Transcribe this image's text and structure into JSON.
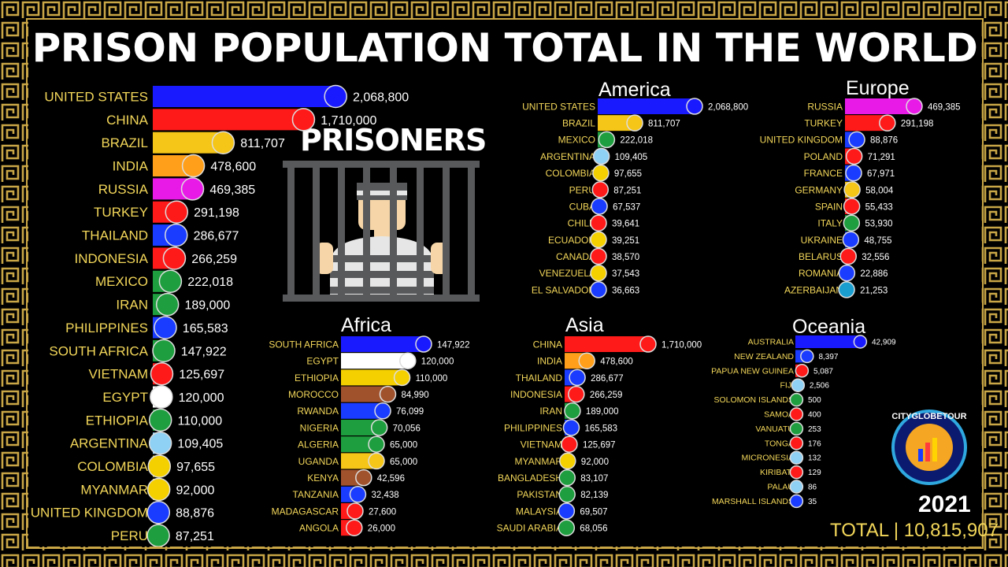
{
  "title": "PRISON POPULATION TOTAL IN THE WORLD",
  "graphic_label": "PRISONERS",
  "logo_text": "CITYGLOBETOUR",
  "year": "2021",
  "total_label": "TOTAL | 10,815,907",
  "colors": {
    "label": "#f3d75a",
    "value": "#ffffff",
    "gold": "#c9a646",
    "background": "#000000"
  },
  "chart_data": [
    {
      "type": "bar",
      "name": "World",
      "xlim": [
        0,
        2068800
      ],
      "categories": [
        "UNITED STATES",
        "CHINA",
        "BRAZIL",
        "INDIA",
        "RUSSIA",
        "TURKEY",
        "THAILAND",
        "INDONESIA",
        "MEXICO",
        "IRAN",
        "PHILIPPINES",
        "SOUTH AFRICA",
        "VIETNAM",
        "EGYPT",
        "ETHIOPIA",
        "ARGENTINA",
        "COLOMBIA",
        "MYANMAR",
        "UNITED KINGDOM",
        "PERU"
      ],
      "values": [
        2068800,
        1710000,
        811707,
        478600,
        469385,
        291198,
        286677,
        266259,
        222018,
        189000,
        165583,
        147922,
        125697,
        120000,
        110000,
        109405,
        97655,
        92000,
        88876,
        87251
      ],
      "value_labels": [
        "2,068,800",
        "1,710,000",
        "811,707",
        "478,600",
        "469,385",
        "291,198",
        "286,677",
        "266,259",
        "222,018",
        "189,000",
        "165,583",
        "147,922",
        "125,697",
        "120,000",
        "110,000",
        "109,405",
        "97,655",
        "92,000",
        "88,876",
        "87,251"
      ],
      "colors": [
        "#1a1aff",
        "#ff1a1a",
        "#f5c518",
        "#ff9f1a",
        "#e81ae8",
        "#ff1a1a",
        "#1a3cff",
        "#ff1a1a",
        "#1f9e3f",
        "#1f9e3f",
        "#1a3cff",
        "#1f9e3f",
        "#ff1a1a",
        "#ffffff",
        "#1f9e3f",
        "#8fd0f5",
        "#f5d000",
        "#f5d000",
        "#1a3cff",
        "#1f9e3f"
      ]
    },
    {
      "type": "bar",
      "title": "America",
      "xlim": [
        0,
        2068800
      ],
      "categories": [
        "UNITED STATES",
        "BRAZIL",
        "MEXICO",
        "ARGENTINA",
        "COLOMBIA",
        "PERU",
        "CUBA",
        "CHILE",
        "ECUADOR",
        "CANADA",
        "VENEZUELA",
        "EL SALVADOR"
      ],
      "values": [
        2068800,
        811707,
        222018,
        109405,
        97655,
        87251,
        67537,
        39641,
        39251,
        38570,
        37543,
        36663
      ],
      "value_labels": [
        "2,068,800",
        "811,707",
        "222,018",
        "109,405",
        "97,655",
        "87,251",
        "67,537",
        "39,641",
        "39,251",
        "38,570",
        "37,543",
        "36,663"
      ],
      "colors": [
        "#1a1aff",
        "#f5c518",
        "#1f9e3f",
        "#8fd0f5",
        "#f5d000",
        "#ff1a1a",
        "#1a3cff",
        "#ff1a1a",
        "#f5d000",
        "#ff1a1a",
        "#f5d000",
        "#1a3cff"
      ]
    },
    {
      "type": "bar",
      "title": "Europe",
      "xlim": [
        0,
        469385
      ],
      "categories": [
        "RUSSIA",
        "TURKEY",
        "UNITED KINGDOM",
        "POLAND",
        "FRANCE",
        "GERMANY",
        "SPAIN",
        "ITALY",
        "UKRAINE",
        "BELARUS",
        "ROMANIA",
        "AZERBAIJAN"
      ],
      "values": [
        469385,
        291198,
        88876,
        71291,
        67971,
        58004,
        55433,
        53930,
        48755,
        32556,
        22886,
        21253
      ],
      "value_labels": [
        "469,385",
        "291,198",
        "88,876",
        "71,291",
        "67,971",
        "58,004",
        "55,433",
        "53,930",
        "48,755",
        "32,556",
        "22,886",
        "21,253"
      ],
      "colors": [
        "#e81ae8",
        "#ff1a1a",
        "#1a3cff",
        "#ff1a1a",
        "#1a3cff",
        "#f5c518",
        "#ff1a1a",
        "#1f9e3f",
        "#1a3cff",
        "#ff1a1a",
        "#1a3cff",
        "#1a9ed0"
      ]
    },
    {
      "type": "bar",
      "title": "Africa",
      "xlim": [
        0,
        147922
      ],
      "categories": [
        "SOUTH AFRICA",
        "EGYPT",
        "ETHIOPIA",
        "MOROCCO",
        "RWANDA",
        "NIGERIA",
        "ALGERIA",
        "UGANDA",
        "KENYA",
        "TANZANIA",
        "MADAGASCAR",
        "ANGOLA"
      ],
      "values": [
        147922,
        120000,
        110000,
        84990,
        76099,
        70056,
        65000,
        65000,
        42596,
        32438,
        27600,
        26000
      ],
      "value_labels": [
        "147,922",
        "120,000",
        "110,000",
        "84,990",
        "76,099",
        "70,056",
        "65,000",
        "65,000",
        "42,596",
        "32,438",
        "27,600",
        "26,000"
      ],
      "colors": [
        "#1a1aff",
        "#ffffff",
        "#f5d000",
        "#a0522d",
        "#1a3cff",
        "#1f9e3f",
        "#1f9e3f",
        "#f5c518",
        "#a0522d",
        "#1a3cff",
        "#ff1a1a",
        "#ff1a1a"
      ]
    },
    {
      "type": "bar",
      "title": "Asia",
      "xlim": [
        0,
        1710000
      ],
      "categories": [
        "CHINA",
        "INDIA",
        "THAILAND",
        "INDONESIA",
        "IRAN",
        "PHILIPPINES",
        "VIETNAM",
        "MYANMAR",
        "BANGLADESH",
        "PAKISTAN",
        "MALAYSIA",
        "SAUDI ARABIA"
      ],
      "values": [
        1710000,
        478600,
        286677,
        266259,
        189000,
        165583,
        125697,
        92000,
        83107,
        82139,
        69507,
        68056
      ],
      "value_labels": [
        "1,710,000",
        "478,600",
        "286,677",
        "266,259",
        "189,000",
        "165,583",
        "125,697",
        "92,000",
        "83,107",
        "82,139",
        "69,507",
        "68,056"
      ],
      "colors": [
        "#ff1a1a",
        "#ff9f1a",
        "#1a3cff",
        "#ff1a1a",
        "#1f9e3f",
        "#1a3cff",
        "#ff1a1a",
        "#f5d000",
        "#1f9e3f",
        "#1f9e3f",
        "#1a3cff",
        "#1f9e3f"
      ]
    },
    {
      "type": "bar",
      "title": "Oceania",
      "xlim": [
        0,
        42909
      ],
      "categories": [
        "AUSTRALIA",
        "NEW ZEALAND",
        "PAPUA NEW GUINEA",
        "FIJI",
        "SOLOMON ISLANDS",
        "SAMOA",
        "VANUATU",
        "TONGA",
        "MICRONESIA",
        "KIRIBATI",
        "PALAU",
        "MARSHALL ISLANDS"
      ],
      "values": [
        42909,
        8397,
        5087,
        2506,
        500,
        400,
        253,
        176,
        132,
        129,
        86,
        35
      ],
      "value_labels": [
        "42,909",
        "8,397",
        "5,087",
        "2,506",
        "500",
        "400",
        "253",
        "176",
        "132",
        "129",
        "86",
        "35"
      ],
      "colors": [
        "#1a1aff",
        "#1a3cff",
        "#ff1a1a",
        "#8fd0f5",
        "#1f9e3f",
        "#ff1a1a",
        "#1f9e3f",
        "#ff1a1a",
        "#8fd0f5",
        "#ff1a1a",
        "#8fd0f5",
        "#1a3cff"
      ]
    }
  ]
}
